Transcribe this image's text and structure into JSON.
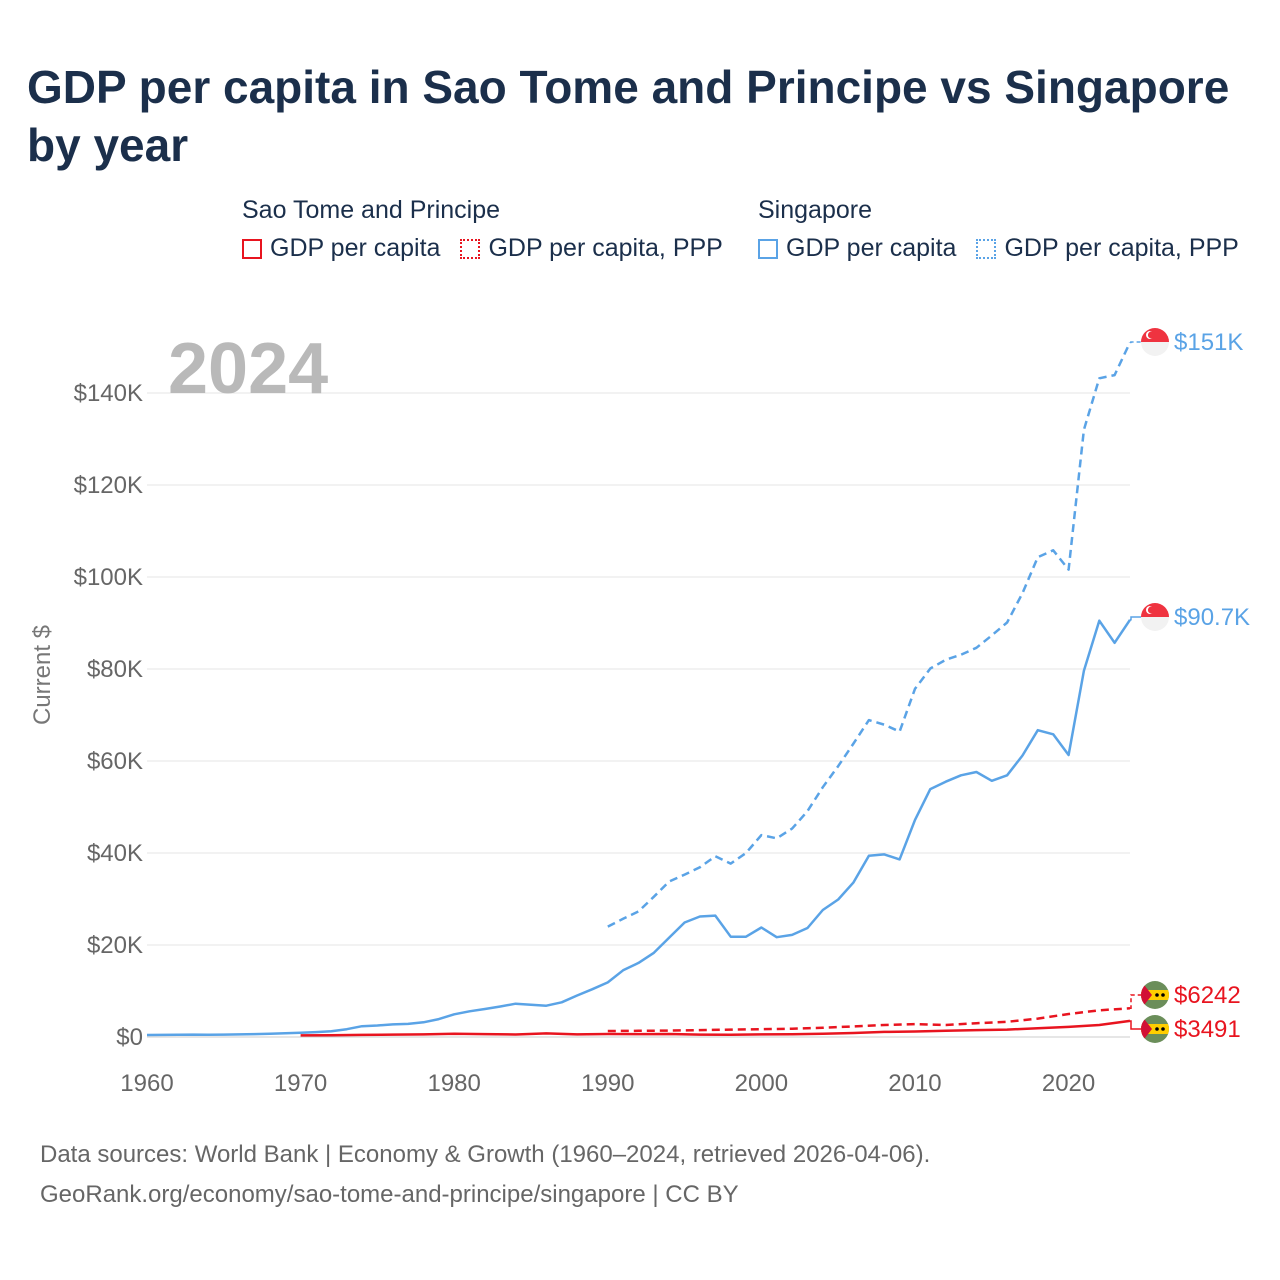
{
  "title": "GDP per capita in Sao Tome and Principe vs Singapore by year",
  "year_watermark": "2024",
  "legend": {
    "groups": [
      {
        "country": "Sao Tome and Principe",
        "items": [
          {
            "label": "GDP per capita",
            "color": "#e8141f",
            "style": "solid"
          },
          {
            "label": "GDP per capita, PPP",
            "color": "#e8141f",
            "style": "dotted"
          }
        ]
      },
      {
        "country": "Singapore",
        "items": [
          {
            "label": "GDP per capita",
            "color": "#5aa3e6",
            "style": "solid"
          },
          {
            "label": "GDP per capita, PPP",
            "color": "#5aa3e6",
            "style": "dotted"
          }
        ]
      }
    ]
  },
  "footer": {
    "line1": "Data sources: World Bank | Economy & Growth (1960–2024, retrieved 2026-04-06).",
    "line2": "GeoRank.org/economy/sao-tome-and-principe/singapore | CC BY"
  },
  "chart_data": {
    "type": "line",
    "title": "GDP per capita in Sao Tome and Principe vs Singapore by year",
    "xlabel": "",
    "ylabel": "Current $",
    "xlim": [
      1960,
      2024
    ],
    "ylim": [
      0,
      150000
    ],
    "x_ticks": [
      1960,
      1970,
      1980,
      1990,
      2000,
      2010,
      2020
    ],
    "x_tick_labels": [
      "1960",
      "1970",
      "1980",
      "1990",
      "2000",
      "2010",
      "2020"
    ],
    "y_ticks": [
      0,
      20000,
      40000,
      60000,
      80000,
      100000,
      120000,
      140000
    ],
    "y_tick_labels": [
      "$0",
      "$20K",
      "$40K",
      "$60K",
      "$80K",
      "$100K",
      "$120K",
      "$140K"
    ],
    "grid": true,
    "series": [
      {
        "name": "Singapore GDP per capita",
        "country": "Singapore",
        "color": "#5aa3e6",
        "dash": "solid",
        "end_label": "$90.7K",
        "x": [
          1960,
          1961,
          1962,
          1963,
          1964,
          1965,
          1966,
          1967,
          1968,
          1969,
          1970,
          1971,
          1972,
          1973,
          1974,
          1975,
          1976,
          1977,
          1978,
          1979,
          1980,
          1981,
          1982,
          1983,
          1984,
          1985,
          1986,
          1987,
          1988,
          1989,
          1990,
          1991,
          1992,
          1993,
          1994,
          1995,
          1996,
          1997,
          1998,
          1999,
          2000,
          2001,
          2002,
          2003,
          2004,
          2005,
          2006,
          2007,
          2008,
          2009,
          2010,
          2011,
          2012,
          2013,
          2014,
          2015,
          2016,
          2017,
          2018,
          2019,
          2020,
          2021,
          2022,
          2023,
          2024
        ],
        "y": [
          428,
          449,
          472,
          511,
          485,
          516,
          566,
          626,
          708,
          812,
          926,
          1070,
          1264,
          1685,
          2342,
          2490,
          2746,
          2846,
          3194,
          3901,
          4928,
          5597,
          6078,
          6633,
          7235,
          7002,
          6800,
          7540,
          9020,
          10400,
          11864,
          14500,
          16100,
          18300,
          21600,
          24900,
          26200,
          26400,
          21800,
          21800,
          23800,
          21700,
          22200,
          23700,
          27600,
          29900,
          33600,
          39400,
          39700,
          38600,
          47200,
          53900,
          55500,
          56900,
          57600,
          55700,
          56900,
          61200,
          66700,
          65800,
          61300,
          79600,
          90500,
          85700,
          90700
        ]
      },
      {
        "name": "Singapore GDP per capita, PPP",
        "country": "Singapore",
        "color": "#5aa3e6",
        "dash": "dashed",
        "end_label": "$151K",
        "x": [
          1990,
          1991,
          1992,
          1993,
          1994,
          1995,
          1996,
          1997,
          1998,
          1999,
          2000,
          2001,
          2002,
          2003,
          2004,
          2005,
          2006,
          2007,
          2008,
          2009,
          2010,
          2011,
          2012,
          2013,
          2014,
          2015,
          2016,
          2017,
          2018,
          2019,
          2020,
          2021,
          2022,
          2023,
          2024
        ],
        "y": [
          24000,
          25700,
          27300,
          30500,
          33800,
          35300,
          36900,
          39300,
          37700,
          40000,
          43900,
          43200,
          45300,
          49100,
          54300,
          58900,
          63800,
          68900,
          67900,
          66400,
          75700,
          80100,
          82000,
          83100,
          84600,
          87300,
          90100,
          96500,
          104300,
          105800,
          101600,
          132000,
          143200,
          143900,
          151000
        ]
      },
      {
        "name": "Sao Tome and Principe GDP per capita",
        "country": "Sao Tome and Principe",
        "color": "#e8141f",
        "dash": "solid",
        "end_label": "$3491",
        "x": [
          1970,
          1972,
          1974,
          1976,
          1978,
          1980,
          1982,
          1984,
          1986,
          1988,
          1990,
          1992,
          1994,
          1996,
          1998,
          2000,
          2002,
          2004,
          2006,
          2008,
          2010,
          2012,
          2014,
          2016,
          2018,
          2020,
          2022,
          2024
        ],
        "y": [
          350,
          380,
          460,
          520,
          560,
          700,
          620,
          540,
          780,
          560,
          650,
          620,
          650,
          520,
          480,
          560,
          600,
          710,
          860,
          1100,
          1200,
          1350,
          1500,
          1600,
          1900,
          2200,
          2600,
          3491
        ]
      },
      {
        "name": "Sao Tome and Principe GDP per capita, PPP",
        "country": "Sao Tome and Principe",
        "color": "#e8141f",
        "dash": "dashed",
        "end_label": "$6242",
        "x": [
          1990,
          1992,
          1994,
          1996,
          1998,
          2000,
          2002,
          2004,
          2006,
          2008,
          2010,
          2012,
          2014,
          2016,
          2018,
          2020,
          2022,
          2024
        ],
        "y": [
          1300,
          1350,
          1400,
          1500,
          1600,
          1700,
          1800,
          2000,
          2300,
          2600,
          2800,
          2600,
          3000,
          3300,
          4000,
          5000,
          5800,
          6242
        ]
      }
    ]
  }
}
